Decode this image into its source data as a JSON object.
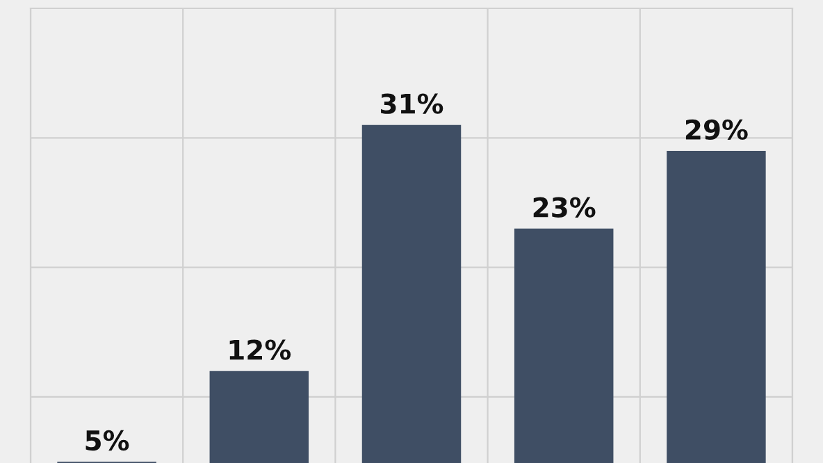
{
  "chart_data": {
    "type": "bar",
    "categories": [
      null,
      null,
      null,
      null,
      null
    ],
    "values": [
      5,
      12,
      31,
      23,
      29
    ],
    "color": "#3f4e64",
    "data_labels": true,
    "value_labels": [
      "5%",
      "12%",
      "31%",
      "23%",
      "29%"
    ],
    "ylim": [
      4.9,
      40
    ],
    "yticks": [
      {
        "value": 10,
        "label": null
      },
      {
        "value": 20,
        "label": null
      },
      {
        "value": 30,
        "label": null
      },
      {
        "value": 40,
        "label": null
      }
    ],
    "grid": true
  }
}
